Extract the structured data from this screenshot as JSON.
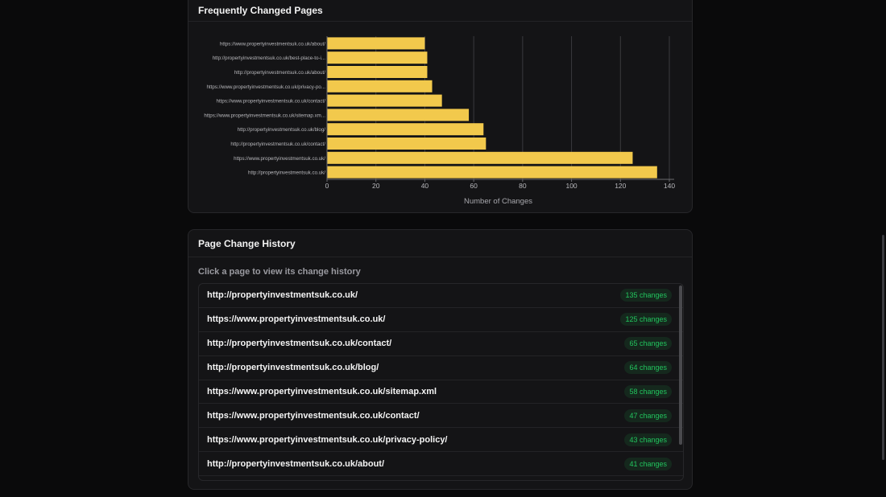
{
  "chart_section": {
    "title": "Frequently Changed Pages"
  },
  "chart_data": {
    "type": "bar",
    "orientation": "horizontal",
    "categories": [
      "https://www.propertyinvestmentsuk.co.uk/about/",
      "http://propertyinvestmentsuk.co.uk/best-place-to-i...",
      "http://propertyinvestmentsuk.co.uk/about/",
      "https://www.propertyinvestmentsuk.co.uk/privacy-po...",
      "https://www.propertyinvestmentsuk.co.uk/contact/",
      "https://www.propertyinvestmentsuk.co.uk/sitemap.xm...",
      "http://propertyinvestmentsuk.co.uk/blog/",
      "http://propertyinvestmentsuk.co.uk/contact/",
      "https://www.propertyinvestmentsuk.co.uk/",
      "http://propertyinvestmentsuk.co.uk/"
    ],
    "values": [
      40,
      41,
      41,
      43,
      47,
      58,
      64,
      65,
      125,
      135
    ],
    "xlabel": "Number of Changes",
    "xlim": [
      0,
      140
    ],
    "xticks": [
      "0",
      "20",
      "40",
      "60",
      "80",
      "100",
      "120",
      "140"
    ],
    "bar_color": "#f2c94c",
    "grid": "vertical"
  },
  "history_section": {
    "title": "Page Change History",
    "subtitle": "Click a page to view its change history",
    "pages": [
      {
        "url": "http://propertyinvestmentsuk.co.uk/",
        "badge": "135 changes"
      },
      {
        "url": "https://www.propertyinvestmentsuk.co.uk/",
        "badge": "125 changes"
      },
      {
        "url": "http://propertyinvestmentsuk.co.uk/contact/",
        "badge": "65 changes"
      },
      {
        "url": "http://propertyinvestmentsuk.co.uk/blog/",
        "badge": "64 changes"
      },
      {
        "url": "https://www.propertyinvestmentsuk.co.uk/sitemap.xml",
        "badge": "58 changes"
      },
      {
        "url": "https://www.propertyinvestmentsuk.co.uk/contact/",
        "badge": "47 changes"
      },
      {
        "url": "https://www.propertyinvestmentsuk.co.uk/privacy-policy/",
        "badge": "43 changes"
      },
      {
        "url": "http://propertyinvestmentsuk.co.uk/about/",
        "badge": "41 changes"
      }
    ]
  },
  "colors": {
    "background": "#0a0a0b",
    "card": "#141416",
    "accent_green": "#22c55e",
    "bar": "#f2c94c"
  }
}
